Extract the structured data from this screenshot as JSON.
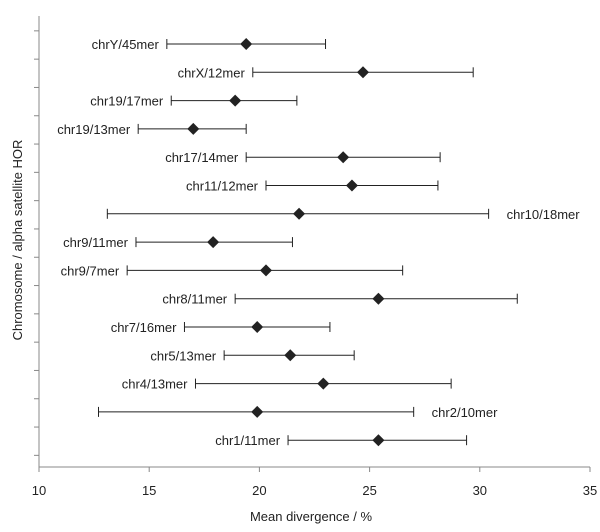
{
  "chart_data": {
    "type": "scatter",
    "title": "",
    "xlabel": "Mean divergence / %",
    "ylabel": "Chromosome / alpha satellite HOR",
    "xlim": [
      10,
      35
    ],
    "xticks": [
      10,
      15,
      20,
      25,
      30,
      35
    ],
    "grid": false,
    "legend": "none",
    "marker": "diamond",
    "colors": {
      "marker": "#222222",
      "errorbar": "#222222",
      "axis": "#888888"
    },
    "points": [
      {
        "label": "chrY/45mer",
        "x": 19.4,
        "xerr_low": 15.8,
        "xerr_high": 23.0,
        "label_side": "left"
      },
      {
        "label": "chrX/12mer",
        "x": 24.7,
        "xerr_low": 19.7,
        "xerr_high": 29.7,
        "label_side": "left"
      },
      {
        "label": "chr19/17mer",
        "x": 18.9,
        "xerr_low": 16.0,
        "xerr_high": 21.7,
        "label_side": "left"
      },
      {
        "label": "chr19/13mer",
        "x": 17.0,
        "xerr_low": 14.5,
        "xerr_high": 19.4,
        "label_side": "left"
      },
      {
        "label": "chr17/14mer",
        "x": 23.8,
        "xerr_low": 19.4,
        "xerr_high": 28.2,
        "label_side": "left"
      },
      {
        "label": "chr11/12mer",
        "x": 24.2,
        "xerr_low": 20.3,
        "xerr_high": 28.1,
        "label_side": "left"
      },
      {
        "label": "chr10/18mer",
        "x": 21.8,
        "xerr_low": 13.1,
        "xerr_high": 30.4,
        "label_side": "right"
      },
      {
        "label": "chr9/11mer",
        "x": 17.9,
        "xerr_low": 14.4,
        "xerr_high": 21.5,
        "label_side": "left"
      },
      {
        "label": "chr9/7mer",
        "x": 20.3,
        "xerr_low": 14.0,
        "xerr_high": 26.5,
        "label_side": "left"
      },
      {
        "label": "chr8/11mer",
        "x": 25.4,
        "xerr_low": 18.9,
        "xerr_high": 31.7,
        "label_side": "left"
      },
      {
        "label": "chr7/16mer",
        "x": 19.9,
        "xerr_low": 16.6,
        "xerr_high": 23.2,
        "label_side": "left"
      },
      {
        "label": "chr5/13mer",
        "x": 21.4,
        "xerr_low": 18.4,
        "xerr_high": 24.3,
        "label_side": "left"
      },
      {
        "label": "chr4/13mer",
        "x": 22.9,
        "xerr_low": 17.1,
        "xerr_high": 28.7,
        "label_side": "left"
      },
      {
        "label": "chr2/10mer",
        "x": 19.9,
        "xerr_low": 12.7,
        "xerr_high": 27.0,
        "label_side": "right"
      },
      {
        "label": "chr1/11mer",
        "x": 25.4,
        "xerr_low": 21.3,
        "xerr_high": 29.4,
        "label_side": "left"
      }
    ]
  }
}
